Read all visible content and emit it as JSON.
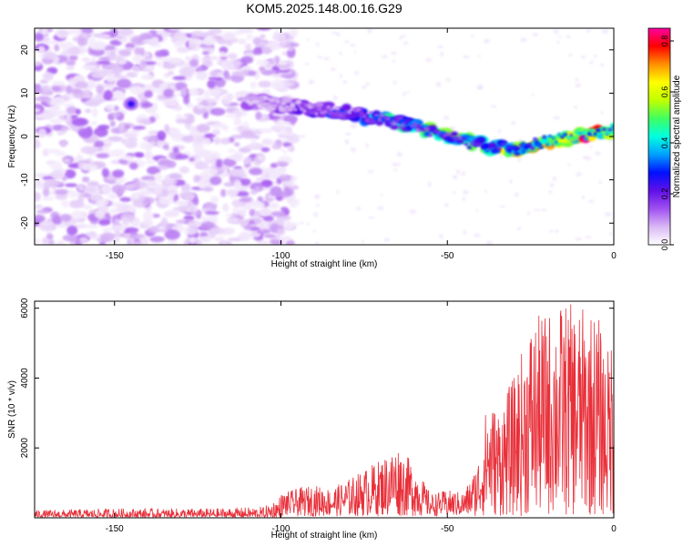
{
  "title": "KOM5.2025.148.00.16.G29",
  "chart_data": [
    {
      "type": "heatmap",
      "xlabel": "Height of straight line (km)",
      "ylabel": "Frequency (Hz)",
      "xlim": [
        -174,
        0
      ],
      "ylim": [
        -25,
        25
      ],
      "xticks": [
        -150,
        -100,
        -50,
        0
      ],
      "yticks": [
        -20,
        -10,
        0,
        10,
        20
      ],
      "colorbar": {
        "label": "Normalized spectral amplitude",
        "range": [
          0,
          0.85
        ],
        "ticks": [
          0.0,
          0.2,
          0.4,
          0.6,
          0.8
        ],
        "colors": [
          "#ffffff",
          "#d9b8f5",
          "#a050f0",
          "#6010e8",
          "#0010ff",
          "#00a0ff",
          "#00ffe0",
          "#40ff60",
          "#c0ff00",
          "#ffff00",
          "#ff9000",
          "#ff0000",
          "#ff00a0"
        ]
      },
      "ridge": {
        "x": [
          -110,
          -100,
          -90,
          -80,
          -70,
          -60,
          -50,
          -40,
          -30,
          -20,
          -10,
          0
        ],
        "y": [
          8,
          7.5,
          6.5,
          5.5,
          4,
          2.5,
          0,
          -2,
          -3,
          -1,
          0,
          1.5
        ],
        "amplitude": [
          0.12,
          0.15,
          0.22,
          0.3,
          0.38,
          0.42,
          0.48,
          0.5,
          0.55,
          0.72,
          0.78,
          0.7
        ]
      },
      "noise_region_x": [
        -174,
        -100
      ]
    },
    {
      "type": "line",
      "xlabel": "Height of straight line (km)",
      "ylabel": "SNR (10 * v/v)",
      "xlim": [
        -174,
        0
      ],
      "ylim": [
        0,
        6200
      ],
      "xticks": [
        -150,
        -100,
        -50,
        0
      ],
      "yticks": [
        2000,
        4000,
        6000
      ],
      "color": "#e8303a",
      "envelope": {
        "x": [
          -174,
          -150,
          -120,
          -105,
          -100,
          -95,
          -90,
          -85,
          -80,
          -75,
          -70,
          -65,
          -60,
          -55,
          -50,
          -45,
          -42,
          -40,
          -38,
          -35,
          -30,
          -25,
          -20,
          -15,
          -10,
          -5,
          -2,
          0
        ],
        "y": [
          200,
          250,
          250,
          300,
          650,
          800,
          900,
          800,
          1050,
          1350,
          1650,
          2050,
          1500,
          650,
          750,
          700,
          1300,
          1900,
          3400,
          3100,
          4000,
          5600,
          5900,
          6150,
          6000,
          5900,
          4700,
          5700
        ]
      }
    }
  ]
}
